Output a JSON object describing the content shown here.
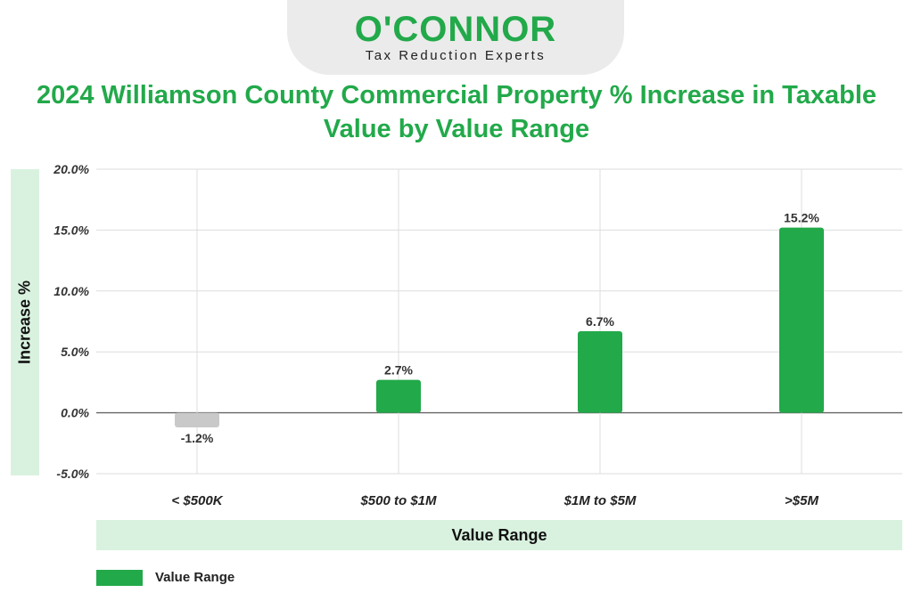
{
  "brand": {
    "name": "O'CONNOR",
    "tagline": "Tax Reduction Experts"
  },
  "colors": {
    "accent": "#22a94a",
    "negative_bar": "#c9c9c9",
    "label_band": "#d9f2df"
  },
  "chart_data": {
    "type": "bar",
    "title": "2024 Williamson County Commercial Property % Increase in Taxable Value by Value Range",
    "xlabel": "Value Range",
    "ylabel": "Increase %",
    "categories": [
      "< $500K",
      "$500 to $1M",
      "$1M to $5M",
      ">$5M"
    ],
    "series": [
      {
        "name": "Value Range",
        "values": [
          -1.2,
          2.7,
          6.7,
          15.2
        ],
        "data_labels": [
          "-1.2%",
          "2.7%",
          "6.7%",
          "15.2%"
        ]
      }
    ],
    "ylim": [
      -5,
      20
    ],
    "yticks": [
      20,
      15,
      10,
      5,
      0,
      -5
    ],
    "ytick_labels": [
      "20.0%",
      "15.0%",
      "10.0%",
      "5.0%",
      "0.0%",
      "-5.0%"
    ],
    "grid": true,
    "legend": "bottom-left"
  }
}
